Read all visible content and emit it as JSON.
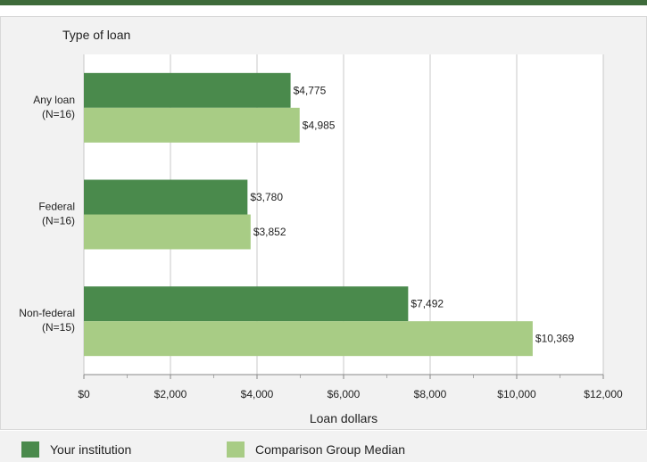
{
  "chart_data": {
    "type": "bar",
    "orientation": "horizontal",
    "title": "Type of loan",
    "xlabel": "Loan dollars",
    "categories": [
      {
        "line1": "Any loan",
        "line2": "(N=16)"
      },
      {
        "line1": "Federal",
        "line2": "(N=16)"
      },
      {
        "line1": "Non-federal",
        "line2": "(N=15)"
      }
    ],
    "series": [
      {
        "name": "Your institution",
        "color": "#4a8a4c",
        "values": [
          4775,
          3780,
          7492
        ],
        "labels": [
          "$4,775",
          "$3,780",
          "$7,492"
        ]
      },
      {
        "name": "Comparison Group Median",
        "color": "#a8cc85",
        "values": [
          4985,
          3852,
          10369
        ],
        "labels": [
          "$4,985",
          "$3,852",
          "$10,369"
        ]
      }
    ],
    "xlim": [
      0,
      12000
    ],
    "xticks": [
      0,
      2000,
      4000,
      6000,
      8000,
      10000,
      12000
    ],
    "xtick_labels": [
      "$0",
      "$2,000",
      "$4,000",
      "$6,000",
      "$8,000",
      "$10,000",
      "$12,000"
    ],
    "grid": true,
    "legend_position": "bottom"
  }
}
